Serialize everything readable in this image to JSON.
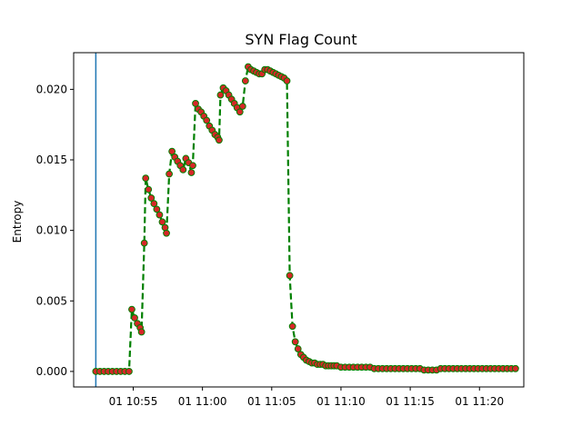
{
  "chart_data": {
    "type": "line",
    "title": "SYN Flag Count",
    "xlabel": "",
    "ylabel": "Entropy",
    "x_axis": {
      "unit": "minutes since 10:50",
      "range": [
        0.7,
        33.2
      ]
    },
    "y_axis": {
      "range": [
        -0.0011,
        0.0226
      ]
    },
    "x_ticks": [
      {
        "value": 5,
        "label": "01 10:55"
      },
      {
        "value": 10,
        "label": "01 11:00"
      },
      {
        "value": 15,
        "label": "01 11:05"
      },
      {
        "value": 20,
        "label": "01 11:10"
      },
      {
        "value": 25,
        "label": "01 11:15"
      },
      {
        "value": 30,
        "label": "01 11:20"
      }
    ],
    "y_ticks": [
      {
        "value": 0.0,
        "label": "0.000"
      },
      {
        "value": 0.005,
        "label": "0.005"
      },
      {
        "value": 0.01,
        "label": "0.010"
      },
      {
        "value": 0.015,
        "label": "0.015"
      },
      {
        "value": 0.02,
        "label": "0.020"
      }
    ],
    "vertical_line": {
      "x": 2.3,
      "color": "#1f77b4"
    },
    "series": [
      {
        "line_color": "#008000",
        "marker_color": "#d62728",
        "line_style": "dashed",
        "points": [
          [
            2.3,
            0.0
          ],
          [
            2.6,
            0.0
          ],
          [
            2.9,
            0.0
          ],
          [
            3.2,
            0.0
          ],
          [
            3.5,
            0.0
          ],
          [
            3.8,
            0.0
          ],
          [
            4.1,
            0.0
          ],
          [
            4.4,
            0.0
          ],
          [
            4.7,
            0.0
          ],
          [
            4.9,
            0.0044
          ],
          [
            5.1,
            0.0038
          ],
          [
            5.3,
            0.0034
          ],
          [
            5.5,
            0.0031
          ],
          [
            5.6,
            0.0028
          ],
          [
            5.8,
            0.0091
          ],
          [
            5.9,
            0.0137
          ],
          [
            6.1,
            0.0129
          ],
          [
            6.3,
            0.0123
          ],
          [
            6.5,
            0.0119
          ],
          [
            6.7,
            0.0115
          ],
          [
            6.9,
            0.0111
          ],
          [
            7.1,
            0.0106
          ],
          [
            7.3,
            0.0102
          ],
          [
            7.4,
            0.0098
          ],
          [
            7.6,
            0.014
          ],
          [
            7.8,
            0.0156
          ],
          [
            8.0,
            0.0152
          ],
          [
            8.2,
            0.0149
          ],
          [
            8.4,
            0.0146
          ],
          [
            8.6,
            0.0143
          ],
          [
            8.8,
            0.0151
          ],
          [
            9.0,
            0.0148
          ],
          [
            9.2,
            0.0141
          ],
          [
            9.3,
            0.0146
          ],
          [
            9.5,
            0.019
          ],
          [
            9.7,
            0.0186
          ],
          [
            9.9,
            0.0184
          ],
          [
            10.1,
            0.0181
          ],
          [
            10.3,
            0.0178
          ],
          [
            10.5,
            0.0174
          ],
          [
            10.7,
            0.0171
          ],
          [
            10.9,
            0.0168
          ],
          [
            11.1,
            0.0166
          ],
          [
            11.2,
            0.0164
          ],
          [
            11.3,
            0.0196
          ],
          [
            11.5,
            0.0201
          ],
          [
            11.7,
            0.0199
          ],
          [
            11.9,
            0.0196
          ],
          [
            12.1,
            0.0193
          ],
          [
            12.3,
            0.019
          ],
          [
            12.5,
            0.0187
          ],
          [
            12.7,
            0.0184
          ],
          [
            12.9,
            0.0188
          ],
          [
            13.1,
            0.0206
          ],
          [
            13.3,
            0.0216
          ],
          [
            13.5,
            0.0214
          ],
          [
            13.7,
            0.0213
          ],
          [
            13.9,
            0.0212
          ],
          [
            14.1,
            0.0211
          ],
          [
            14.3,
            0.0211
          ],
          [
            14.5,
            0.0214
          ],
          [
            14.7,
            0.0214
          ],
          [
            14.9,
            0.0213
          ],
          [
            15.1,
            0.0212
          ],
          [
            15.3,
            0.0211
          ],
          [
            15.5,
            0.021
          ],
          [
            15.7,
            0.0209
          ],
          [
            15.9,
            0.0208
          ],
          [
            16.1,
            0.0206
          ],
          [
            16.3,
            0.0068
          ],
          [
            16.5,
            0.0032
          ],
          [
            16.7,
            0.0021
          ],
          [
            16.9,
            0.0016
          ],
          [
            17.1,
            0.0012
          ],
          [
            17.3,
            0.001
          ],
          [
            17.5,
            0.0008
          ],
          [
            17.7,
            0.0007
          ],
          [
            17.9,
            0.0006
          ],
          [
            18.1,
            0.0006
          ],
          [
            18.3,
            0.0005
          ],
          [
            18.5,
            0.0005
          ],
          [
            18.7,
            0.0005
          ],
          [
            18.9,
            0.0004
          ],
          [
            19.1,
            0.0004
          ],
          [
            19.3,
            0.0004
          ],
          [
            19.5,
            0.0004
          ],
          [
            19.7,
            0.0004
          ],
          [
            20.0,
            0.0003
          ],
          [
            20.3,
            0.0003
          ],
          [
            20.6,
            0.0003
          ],
          [
            20.9,
            0.0003
          ],
          [
            21.2,
            0.0003
          ],
          [
            21.5,
            0.0003
          ],
          [
            21.8,
            0.0003
          ],
          [
            22.1,
            0.0003
          ],
          [
            22.4,
            0.0002
          ],
          [
            22.7,
            0.0002
          ],
          [
            23.0,
            0.0002
          ],
          [
            23.3,
            0.0002
          ],
          [
            23.6,
            0.0002
          ],
          [
            23.9,
            0.0002
          ],
          [
            24.2,
            0.0002
          ],
          [
            24.5,
            0.0002
          ],
          [
            24.8,
            0.0002
          ],
          [
            25.1,
            0.0002
          ],
          [
            25.4,
            0.0002
          ],
          [
            25.7,
            0.0002
          ],
          [
            26.0,
            0.0001
          ],
          [
            26.3,
            0.0001
          ],
          [
            26.6,
            0.0001
          ],
          [
            26.9,
            0.0001
          ],
          [
            27.2,
            0.0002
          ],
          [
            27.5,
            0.0002
          ],
          [
            27.8,
            0.0002
          ],
          [
            28.1,
            0.0002
          ],
          [
            28.4,
            0.0002
          ],
          [
            28.7,
            0.0002
          ],
          [
            29.0,
            0.0002
          ],
          [
            29.3,
            0.0002
          ],
          [
            29.6,
            0.0002
          ],
          [
            29.9,
            0.0002
          ],
          [
            30.2,
            0.0002
          ],
          [
            30.5,
            0.0002
          ],
          [
            30.8,
            0.0002
          ],
          [
            31.1,
            0.0002
          ],
          [
            31.4,
            0.0002
          ],
          [
            31.7,
            0.0002
          ],
          [
            32.0,
            0.0002
          ],
          [
            32.3,
            0.0002
          ],
          [
            32.6,
            0.0002
          ]
        ]
      }
    ]
  }
}
